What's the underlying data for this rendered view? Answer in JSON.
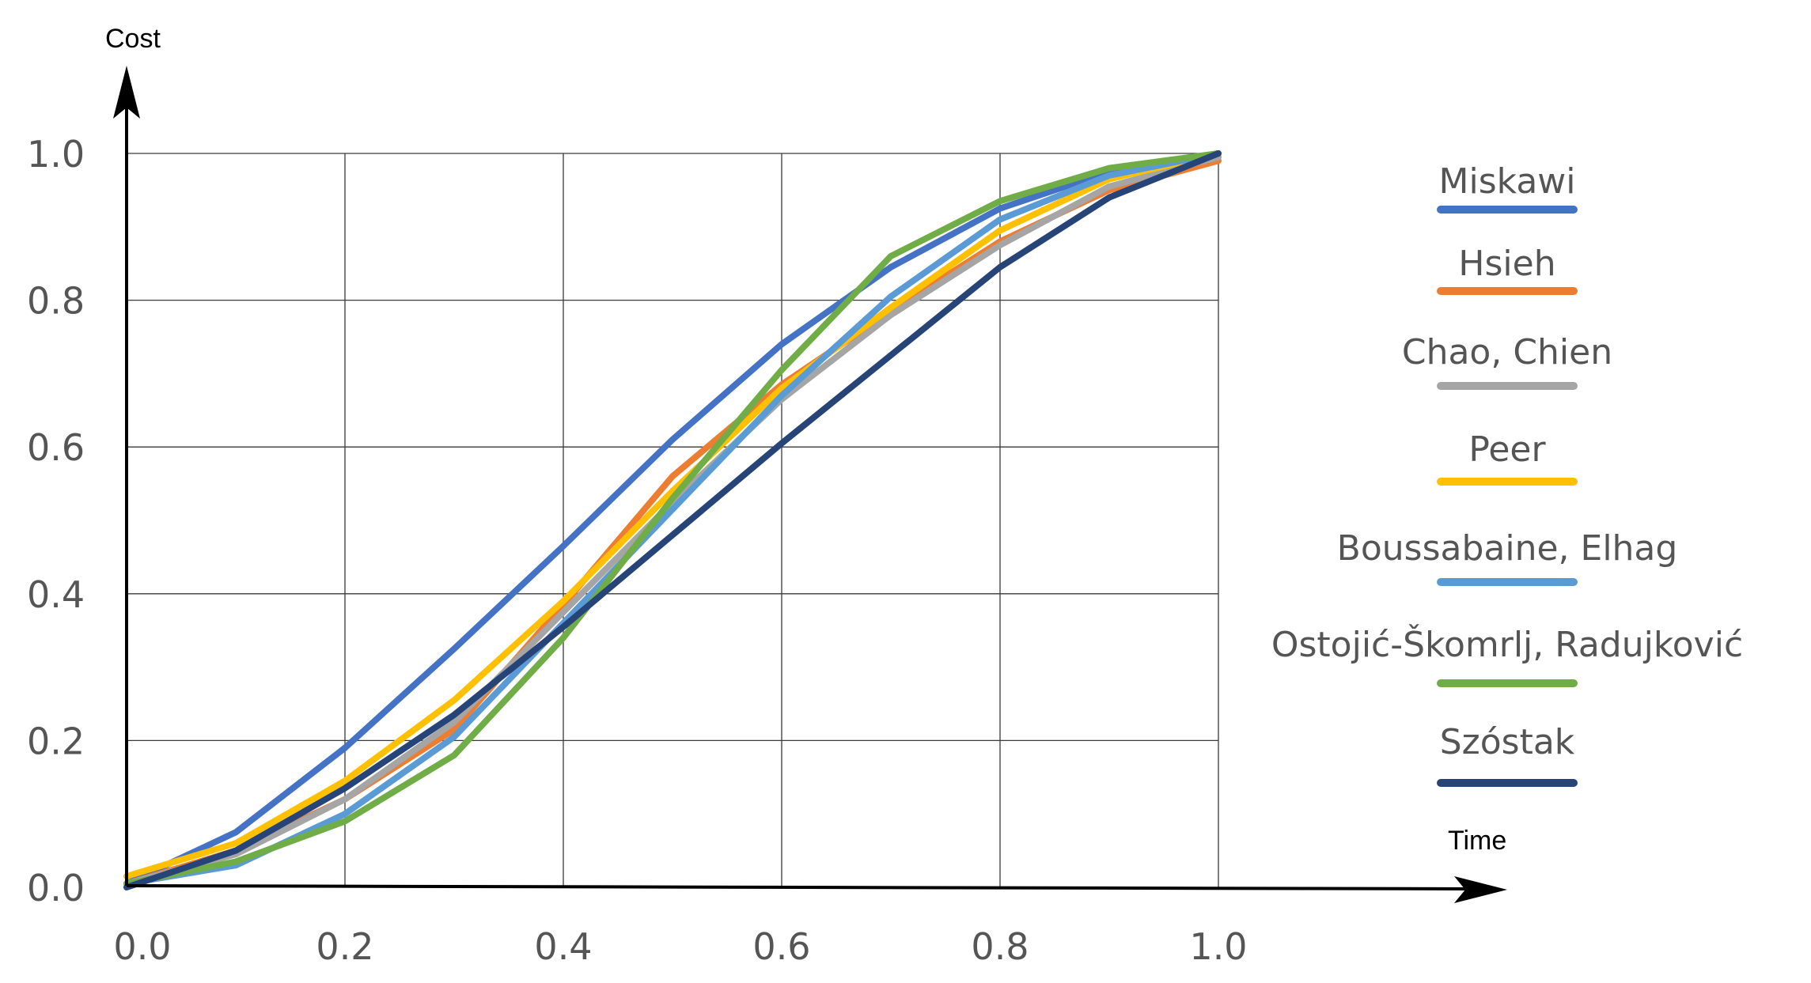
{
  "chart_data": {
    "type": "line",
    "xlabel": "Time",
    "ylabel": "Cost",
    "xlim": [
      0,
      1
    ],
    "ylim": [
      0,
      1
    ],
    "x_ticks": [
      "0.0",
      "0.2",
      "0.4",
      "0.6",
      "0.8",
      "1.0"
    ],
    "y_ticks": [
      "0.0",
      "0.2",
      "0.4",
      "0.6",
      "0.8",
      "1.0"
    ],
    "grid": true,
    "legend_position": "right",
    "series": [
      {
        "name": "Miskawi",
        "color": "#4472C4",
        "points": [
          [
            0,
            0.005
          ],
          [
            0.1,
            0.075
          ],
          [
            0.2,
            0.19
          ],
          [
            0.3,
            0.325
          ],
          [
            0.4,
            0.465
          ],
          [
            0.5,
            0.61
          ],
          [
            0.6,
            0.74
          ],
          [
            0.7,
            0.845
          ],
          [
            0.8,
            0.925
          ],
          [
            0.9,
            0.975
          ],
          [
            1,
            1
          ]
        ]
      },
      {
        "name": "Hsieh",
        "color": "#ED7D31",
        "points": [
          [
            0,
            0.005
          ],
          [
            0.1,
            0.05
          ],
          [
            0.2,
            0.12
          ],
          [
            0.3,
            0.215
          ],
          [
            0.4,
            0.385
          ],
          [
            0.5,
            0.56
          ],
          [
            0.6,
            0.685
          ],
          [
            0.7,
            0.785
          ],
          [
            0.8,
            0.88
          ],
          [
            0.9,
            0.95
          ],
          [
            1,
            0.99
          ]
        ]
      },
      {
        "name": "Chao, Chien",
        "color": "#A5A5A5",
        "points": [
          [
            0,
            0.005
          ],
          [
            0.1,
            0.045
          ],
          [
            0.2,
            0.12
          ],
          [
            0.3,
            0.225
          ],
          [
            0.4,
            0.375
          ],
          [
            0.5,
            0.525
          ],
          [
            0.6,
            0.665
          ],
          [
            0.7,
            0.78
          ],
          [
            0.8,
            0.875
          ],
          [
            0.9,
            0.955
          ],
          [
            1,
            0.995
          ]
        ]
      },
      {
        "name": "Peer",
        "color": "#FFC000",
        "points": [
          [
            0,
            0.015
          ],
          [
            0.1,
            0.06
          ],
          [
            0.2,
            0.145
          ],
          [
            0.3,
            0.255
          ],
          [
            0.4,
            0.39
          ],
          [
            0.5,
            0.54
          ],
          [
            0.6,
            0.68
          ],
          [
            0.7,
            0.79
          ],
          [
            0.8,
            0.895
          ],
          [
            0.9,
            0.965
          ],
          [
            1,
            1
          ]
        ]
      },
      {
        "name": "Boussabaine, Elhag",
        "color": "#5B9BD5",
        "points": [
          [
            0,
            0.005
          ],
          [
            0.1,
            0.03
          ],
          [
            0.2,
            0.1
          ],
          [
            0.3,
            0.205
          ],
          [
            0.4,
            0.36
          ],
          [
            0.5,
            0.515
          ],
          [
            0.6,
            0.67
          ],
          [
            0.7,
            0.805
          ],
          [
            0.8,
            0.91
          ],
          [
            0.9,
            0.97
          ],
          [
            1,
            1
          ]
        ]
      },
      {
        "name": "Ostojić-Škomrlj, Radujković",
        "color": "#70AD47",
        "points": [
          [
            0,
            0.005
          ],
          [
            0.1,
            0.035
          ],
          [
            0.2,
            0.09
          ],
          [
            0.3,
            0.18
          ],
          [
            0.4,
            0.34
          ],
          [
            0.5,
            0.53
          ],
          [
            0.6,
            0.705
          ],
          [
            0.7,
            0.86
          ],
          [
            0.8,
            0.935
          ],
          [
            0.9,
            0.98
          ],
          [
            1,
            1
          ]
        ]
      },
      {
        "name": "Szóstak",
        "color": "#264478",
        "points": [
          [
            0,
            0
          ],
          [
            0.1,
            0.05
          ],
          [
            0.2,
            0.135
          ],
          [
            0.3,
            0.235
          ],
          [
            0.4,
            0.355
          ],
          [
            0.5,
            0.48
          ],
          [
            0.6,
            0.605
          ],
          [
            0.7,
            0.725
          ],
          [
            0.8,
            0.845
          ],
          [
            0.9,
            0.94
          ],
          [
            1,
            1
          ]
        ]
      }
    ]
  }
}
